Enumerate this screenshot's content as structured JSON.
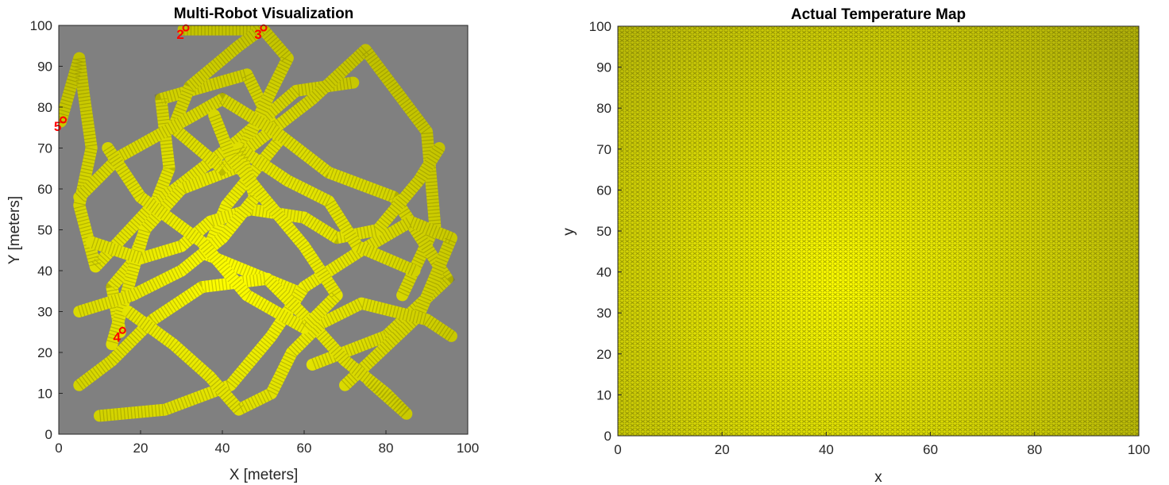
{
  "figure": {
    "background": "#ffffff"
  },
  "chart_data": [
    {
      "type": "scatter",
      "title": "Multi-Robot Visualization",
      "xlabel": "X [meters]",
      "ylabel": "Y [meters]",
      "xlim": [
        0,
        100
      ],
      "ylim": [
        0,
        100
      ],
      "xticks": [
        0,
        20,
        40,
        60,
        80,
        100
      ],
      "yticks": [
        0,
        10,
        20,
        30,
        40,
        50,
        60,
        70,
        80,
        90,
        100
      ],
      "axes_background": "#808080",
      "hot_color": "#ffff00",
      "trail_color": "#c0c000",
      "hotspot": [
        42,
        38
      ],
      "robot_color": "#ff0000",
      "robots": [
        {
          "label": "5",
          "x": 0.5,
          "y": 76.5
        },
        {
          "label": "2",
          "x": 30.5,
          "y": 99
        },
        {
          "label": "3",
          "x": 49.5,
          "y": 99
        },
        {
          "label": "4",
          "x": 15,
          "y": 25
        }
      ],
      "series": [
        {
          "x": [
            15,
            13,
            18,
            27,
            25,
            46,
            54,
            41,
            36,
            58
          ],
          "y": [
            25,
            36,
            42,
            65,
            82,
            88,
            72,
            56,
            44,
            35
          ]
        },
        {
          "x": [
            0.5,
            5,
            6,
            8,
            5,
            9,
            22,
            44,
            58,
            72
          ],
          "y": [
            76.5,
            92,
            84,
            70,
            56,
            41,
            55,
            72,
            84,
            86
          ]
        },
        {
          "x": [
            30.5,
            36,
            50,
            56,
            50,
            43,
            30,
            21,
            17,
            13
          ],
          "y": [
            99,
            99,
            99,
            92,
            80,
            65,
            60,
            50,
            36,
            22
          ]
        },
        {
          "x": [
            49.5,
            44,
            32,
            28,
            40,
            62,
            75,
            90,
            92,
            84
          ],
          "y": [
            99,
            95,
            85,
            75,
            65,
            82,
            94,
            74,
            51,
            34
          ]
        },
        {
          "x": [
            5,
            15,
            33,
            40,
            53,
            66,
            82,
            95,
            80,
            62
          ],
          "y": [
            58,
            68,
            78,
            82,
            74,
            64,
            58,
            38,
            24,
            17
          ]
        },
        {
          "x": [
            10,
            26,
            42,
            52,
            60,
            74,
            86,
            96,
            88,
            70
          ],
          "y": [
            4.5,
            6,
            12,
            24,
            36,
            45,
            52,
            48,
            29,
            12
          ]
        },
        {
          "x": [
            5,
            13,
            23,
            35,
            51,
            61,
            70,
            80,
            85,
            76
          ],
          "y": [
            12,
            18,
            28,
            36,
            38,
            28,
            18,
            10,
            5,
            13
          ]
        },
        {
          "x": [
            93,
            88,
            78,
            68,
            60,
            47,
            37,
            30,
            20,
            8
          ],
          "y": [
            70,
            62,
            50,
            48,
            53,
            55,
            52,
            46,
            43,
            47
          ]
        },
        {
          "x": [
            96,
            90,
            74,
            64,
            57,
            52,
            44,
            37,
            28,
            17
          ],
          "y": [
            24,
            28,
            32,
            27,
            20,
            10,
            6,
            14,
            22,
            30
          ]
        },
        {
          "x": [
            5,
            18,
            30,
            40,
            48,
            44,
            56,
            66,
            73,
            87
          ],
          "y": [
            30,
            34,
            40,
            48,
            58,
            70,
            62,
            57,
            46,
            40
          ]
        },
        {
          "x": [
            12,
            20,
            35,
            46,
            60,
            68,
            60,
            50,
            42,
            38
          ],
          "y": [
            70,
            58,
            47,
            34,
            26,
            34,
            46,
            58,
            68,
            78
          ]
        }
      ]
    },
    {
      "type": "heatmap",
      "title": "Actual Temperature Map",
      "xlabel": "x",
      "ylabel": "y",
      "xlim": [
        0,
        100
      ],
      "ylim": [
        0,
        100
      ],
      "xticks": [
        0,
        20,
        40,
        60,
        80,
        100
      ],
      "yticks": [
        0,
        10,
        20,
        30,
        40,
        50,
        60,
        70,
        80,
        90,
        100
      ],
      "hot_color": "#ffff00",
      "cool_color": "#b0b00a",
      "hotspot": [
        42,
        38
      ],
      "grid_step": 1
    }
  ]
}
